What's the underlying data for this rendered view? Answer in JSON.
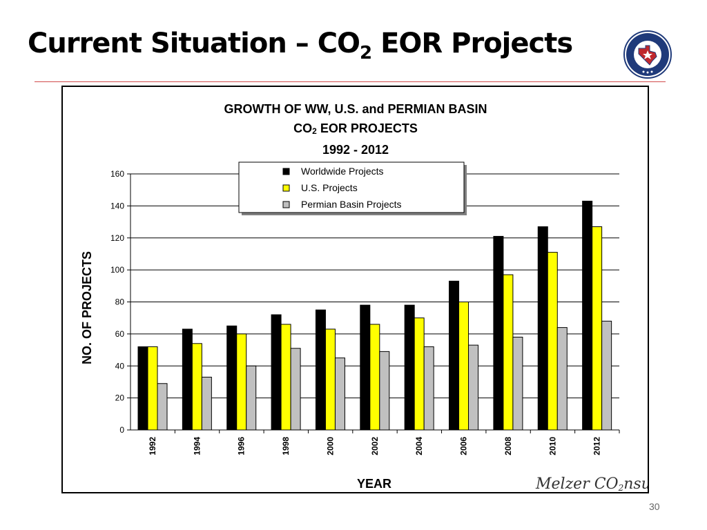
{
  "slide": {
    "title_main": "Current Situation – CO",
    "title_subscript": "2",
    "title_rest": " EOR Projects",
    "page_number": "30",
    "seal_text": "RAILROAD COMMISSION OF TEXAS",
    "watermark": "Melzer CO",
    "watermark_sub": "2",
    "watermark_rest": "nsulting"
  },
  "colors": {
    "worldwide": "#000000",
    "us": "#ffff00",
    "permian": "#c0c0c0",
    "title_rule": "#d04a4a",
    "seal_blue": "#1f3a7a",
    "seal_red": "#c0282d"
  },
  "chart_data": {
    "type": "bar",
    "title_line1": "GROWTH OF WW, U.S. and PERMIAN BASIN",
    "title_line2_main": "CO",
    "title_line2_sub": "2",
    "title_line2_rest": " EOR PROJECTS",
    "title_line3": "1992 - 2012",
    "xlabel": "YEAR",
    "ylabel": "NO. OF PROJECTS",
    "ylim": [
      0,
      160
    ],
    "yticks": [
      0,
      20,
      40,
      60,
      80,
      100,
      120,
      140,
      160
    ],
    "grid": true,
    "legend_position": "top-center",
    "categories": [
      "1992",
      "1994",
      "1996",
      "1998",
      "2000",
      "2002",
      "2004",
      "2006",
      "2008",
      "2010",
      "2012"
    ],
    "series": [
      {
        "name": "Worldwide  Projects",
        "color": "#000000",
        "values": [
          52,
          63,
          65,
          72,
          75,
          78,
          78,
          93,
          121,
          127,
          143
        ]
      },
      {
        "name": "U.S.  Projects",
        "color": "#ffff00",
        "values": [
          52,
          54,
          60,
          66,
          63,
          66,
          70,
          80,
          97,
          111,
          127
        ]
      },
      {
        "name": "Permian Basin  Projects",
        "color": "#c0c0c0",
        "values": [
          29,
          33,
          40,
          51,
          45,
          49,
          52,
          53,
          58,
          64,
          68
        ]
      }
    ]
  }
}
